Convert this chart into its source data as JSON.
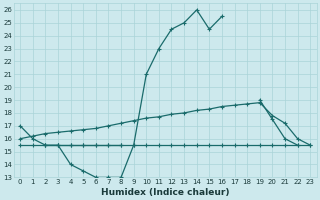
{
  "xlabel": "Humidex (Indice chaleur)",
  "x_values": [
    0,
    1,
    2,
    3,
    4,
    5,
    6,
    7,
    8,
    9,
    10,
    11,
    12,
    13,
    14,
    15,
    16,
    17,
    18,
    19,
    20,
    21,
    22,
    23
  ],
  "line1": [
    17,
    16,
    15.5,
    15.5,
    14,
    13.5,
    13,
    13,
    13,
    15.5,
    21,
    23,
    24.5,
    25,
    26,
    24.5,
    25.5,
    null,
    null,
    19,
    17.5,
    16,
    15.5,
    null
  ],
  "line2": [
    null,
    null,
    15.5,
    15.5,
    15.5,
    15.5,
    15.5,
    15.5,
    15.5,
    null,
    null,
    null,
    null,
    null,
    null,
    null,
    null,
    null,
    null,
    null,
    null,
    null,
    null,
    null
  ],
  "line3": [
    15.5,
    15.5,
    15.5,
    15.5,
    15.5,
    15.5,
    15.5,
    15.5,
    15.5,
    15.5,
    15.5,
    15.5,
    15.5,
    15.5,
    15.5,
    15.5,
    15.5,
    15.5,
    15.5,
    15.5,
    15.5,
    15.5,
    15.5,
    15.5
  ],
  "line4": [
    16,
    16.2,
    16.4,
    16.5,
    16.6,
    16.7,
    16.8,
    17.0,
    17.2,
    17.4,
    17.6,
    17.7,
    17.9,
    18.0,
    18.2,
    18.3,
    18.5,
    18.6,
    18.7,
    18.8,
    17.8,
    17.2,
    16.0,
    15.5
  ],
  "ylim": [
    13,
    26.5
  ],
  "yticks": [
    13,
    14,
    15,
    16,
    17,
    18,
    19,
    20,
    21,
    22,
    23,
    24,
    25,
    26
  ],
  "xlim": [
    -0.5,
    23.5
  ],
  "bg_color": "#cde9ed",
  "grid_color": "#aad4d8",
  "line_color": "#1a6b6b",
  "font_color": "#1a3a3a"
}
